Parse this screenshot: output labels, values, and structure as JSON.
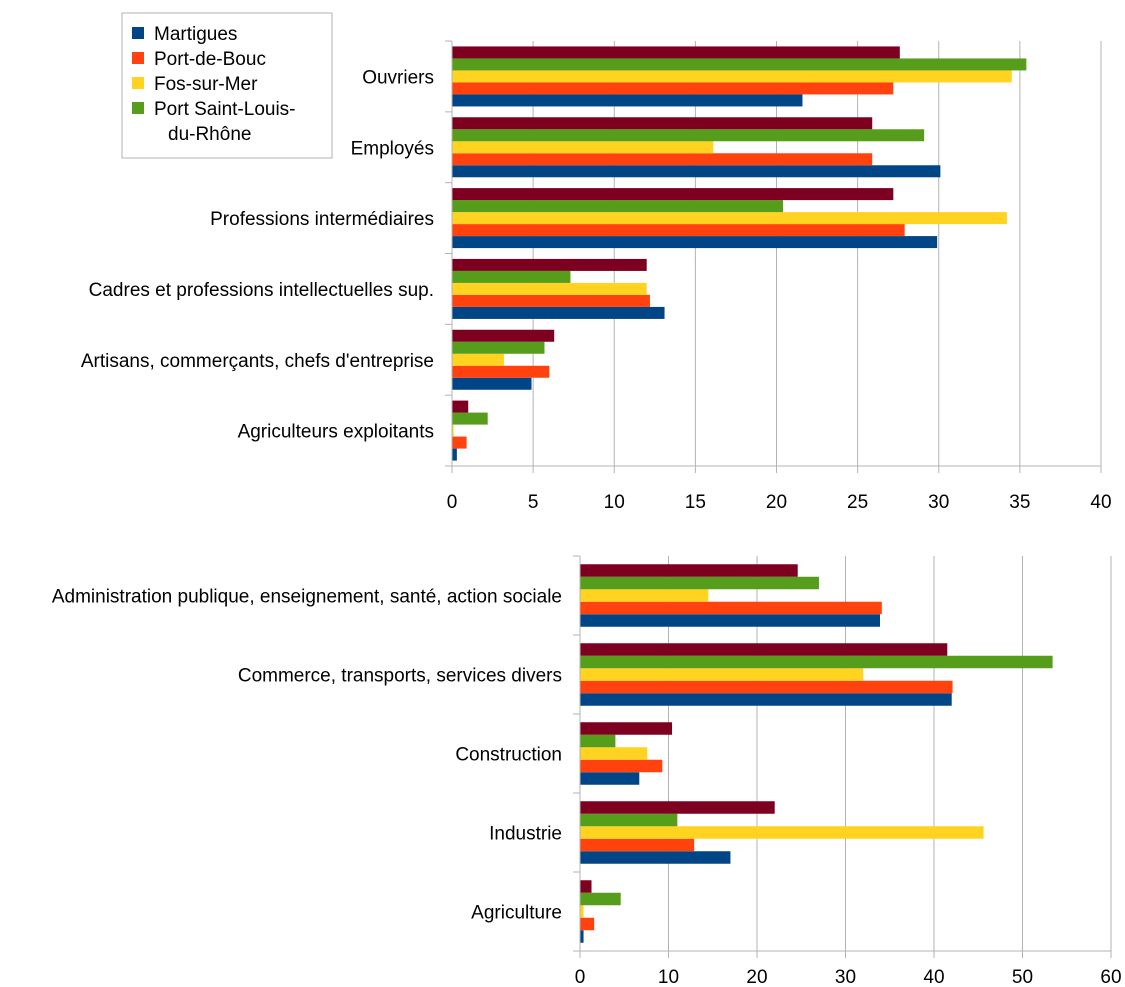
{
  "chart_data": [
    {
      "type": "bar",
      "orientation": "horizontal",
      "categories": [
        "Agriculteurs exploitants",
        "Artisans, commerçants, chefs d'entreprise",
        "Cadres et professions intellectuelles sup.",
        "Professions intermédiaires",
        "Employés",
        "Ouvriers"
      ],
      "series": [
        {
          "name": "Martigues",
          "color": "#004586",
          "values": [
            0.3,
            4.9,
            13.1,
            29.9,
            30.1,
            21.6
          ]
        },
        {
          "name": "Port-de-Bouc",
          "color": "#ff420e",
          "values": [
            0.9,
            6.0,
            12.2,
            27.9,
            25.9,
            27.2
          ]
        },
        {
          "name": "Fos-sur-Mer",
          "color": "#ffd320",
          "values": [
            0.1,
            3.2,
            12.0,
            34.2,
            16.1,
            34.5
          ]
        },
        {
          "name": "Port Saint-Louis-du-Rhône",
          "color": "#579d1c",
          "values": [
            2.2,
            5.7,
            7.3,
            20.4,
            29.1,
            35.4
          ]
        },
        {
          "name": "",
          "color": "#7e0021",
          "values": [
            1.0,
            6.3,
            12.0,
            27.2,
            25.9,
            27.6
          ]
        }
      ],
      "xlim": [
        0,
        40
      ],
      "xticks": [
        "0",
        "5",
        "10",
        "15",
        "20",
        "25",
        "30",
        "35",
        "40"
      ],
      "grid": true,
      "legend": {
        "placement": "top-left",
        "entries": [
          "Martigues",
          "Port-de-Bouc",
          "Fos-sur-Mer",
          "Port Saint-Louis-",
          "du-Rhône"
        ]
      }
    },
    {
      "type": "bar",
      "orientation": "horizontal",
      "categories": [
        "Agriculture",
        "Industrie",
        "Construction",
        "Commerce, transports, services divers",
        "Administration publique, enseignement, santé, action sociale"
      ],
      "series": [
        {
          "name": "Martigues",
          "color": "#004586",
          "values": [
            0.4,
            17.0,
            6.7,
            42.0,
            33.9
          ]
        },
        {
          "name": "Port-de-Bouc",
          "color": "#ff420e",
          "values": [
            1.6,
            12.9,
            9.3,
            42.1,
            34.1
          ]
        },
        {
          "name": "Fos-sur-Mer",
          "color": "#ffd320",
          "values": [
            0.4,
            45.6,
            7.6,
            32.0,
            14.5
          ]
        },
        {
          "name": "Port Saint-Louis-du-Rhône",
          "color": "#579d1c",
          "values": [
            4.6,
            11.0,
            4.0,
            53.4,
            27.0
          ]
        },
        {
          "name": "",
          "color": "#7e0021",
          "values": [
            1.3,
            22.0,
            10.4,
            41.5,
            24.6
          ]
        }
      ],
      "xlim": [
        0,
        60
      ],
      "xticks": [
        "0",
        "10",
        "20",
        "30",
        "40",
        "50",
        "60"
      ],
      "grid": true
    }
  ]
}
